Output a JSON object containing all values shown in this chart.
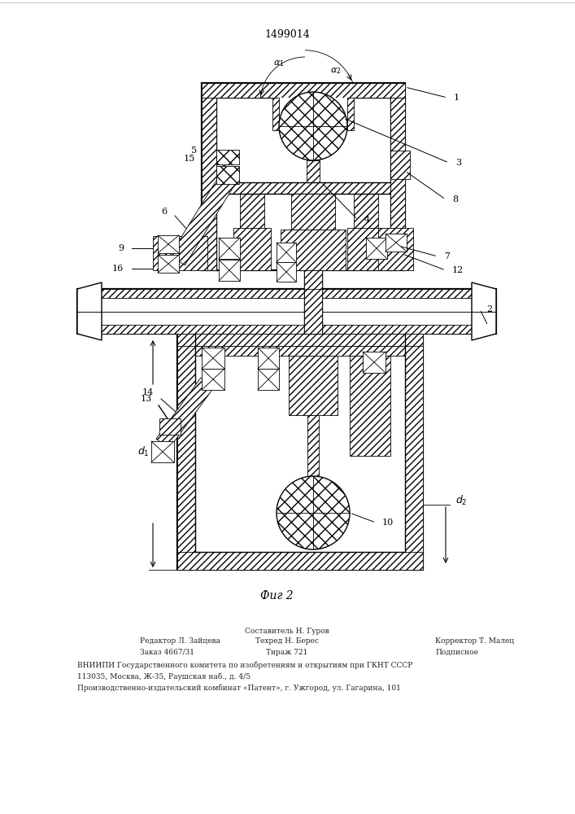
{
  "patent_number": "1499014",
  "figure_label": "Фиг 2",
  "bg_color": "#ffffff",
  "footer_col1_line1": "Редактор Л. Зайцева",
  "footer_col1_line2": "Заказ 4667/31",
  "footer_col2_line1": "Составитель Н. Гуров",
  "footer_col2_line2": "Техред Н. Берес",
  "footer_col2_line3": "Тираж 721",
  "footer_col3_line1": "Корректор Т. Малец",
  "footer_col3_line2": "Подписное",
  "footer_vnipi": "ВНИИПИ Государственного комитета по изобретениям и открытиям при ГКНТ СССР",
  "footer_addr": "113035, Москва, Ж-35, Раушская наб., д. 4/5",
  "footer_patent": "Производственно-издательский комбинат «Патент», г. Ужгород, ул. Гагарина, 101"
}
